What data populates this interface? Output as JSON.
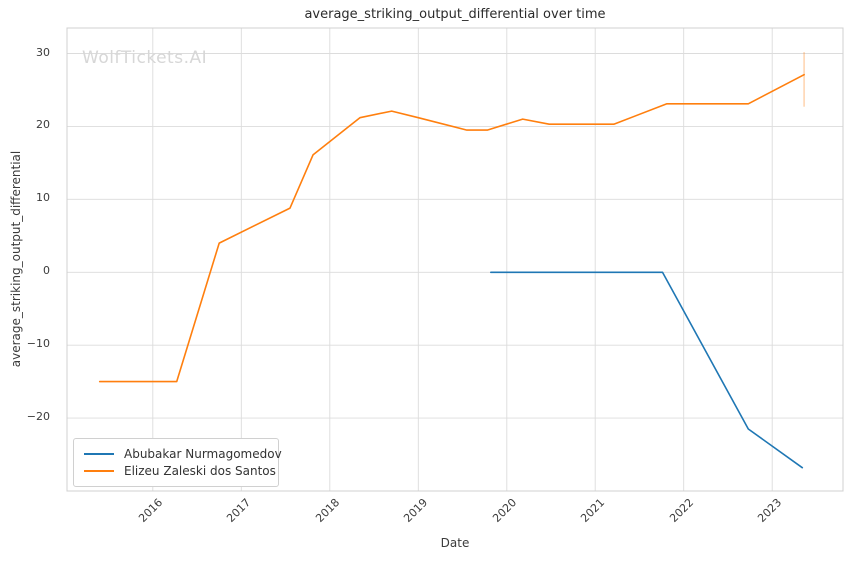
{
  "title": "average_striking_output_differential over time",
  "watermark": "WolfTickets.AI",
  "x_tick_labels": [
    "2016",
    "2017",
    "2018",
    "2019",
    "2020",
    "2021",
    "2022",
    "2023"
  ],
  "y_tick_labels": [
    "30",
    "20",
    "10",
    "0",
    "−10",
    "−20"
  ],
  "legend": {
    "items": [
      "Abubakar Nurmagomedov",
      "Elizeu Zaleski dos Santos"
    ]
  },
  "colors": {
    "series_blue": "#1f77b4",
    "series_orange": "#ff7f0e",
    "grid": "#dcdcdc",
    "spine": "#d0d0d0",
    "watermark": "#d7d7d7"
  },
  "chart_data": {
    "type": "line",
    "title": "average_striking_output_differential over time",
    "xlabel": "Date",
    "ylabel": "average_striking_output_differential",
    "xlim": [
      2015.03,
      2023.8
    ],
    "ylim": [
      -30.0,
      33.5
    ],
    "x_gridlines": [
      2016,
      2017,
      2018,
      2019,
      2020,
      2021,
      2022,
      2023
    ],
    "y_gridlines": [
      30,
      20,
      10,
      0,
      -10,
      -20
    ],
    "grid": true,
    "legend_position": "lower left",
    "series": [
      {
        "name": "Abubakar Nurmagomedov",
        "color": "#1f77b4",
        "points": [
          [
            2019.82,
            0.0
          ],
          [
            2021.76,
            0.0
          ],
          [
            2022.73,
            -21.5
          ],
          [
            2023.34,
            -26.8
          ]
        ]
      },
      {
        "name": "Elizeu Zaleski dos Santos",
        "color": "#ff7f0e",
        "points": [
          [
            2015.4,
            -15.0
          ],
          [
            2016.27,
            -15.0
          ],
          [
            2016.75,
            4.0
          ],
          [
            2017.55,
            8.8
          ],
          [
            2017.81,
            16.1
          ],
          [
            2018.34,
            21.2
          ],
          [
            2018.7,
            22.1
          ],
          [
            2019.0,
            21.2
          ],
          [
            2019.55,
            19.5
          ],
          [
            2019.78,
            19.5
          ],
          [
            2020.18,
            21.0
          ],
          [
            2020.48,
            20.3
          ],
          [
            2021.21,
            20.3
          ],
          [
            2021.81,
            23.1
          ],
          [
            2022.73,
            23.1
          ],
          [
            2023.36,
            27.1
          ]
        ],
        "last_point_error_bar": {
          "x": 2023.36,
          "low": 22.7,
          "high": 30.2
        }
      }
    ]
  }
}
